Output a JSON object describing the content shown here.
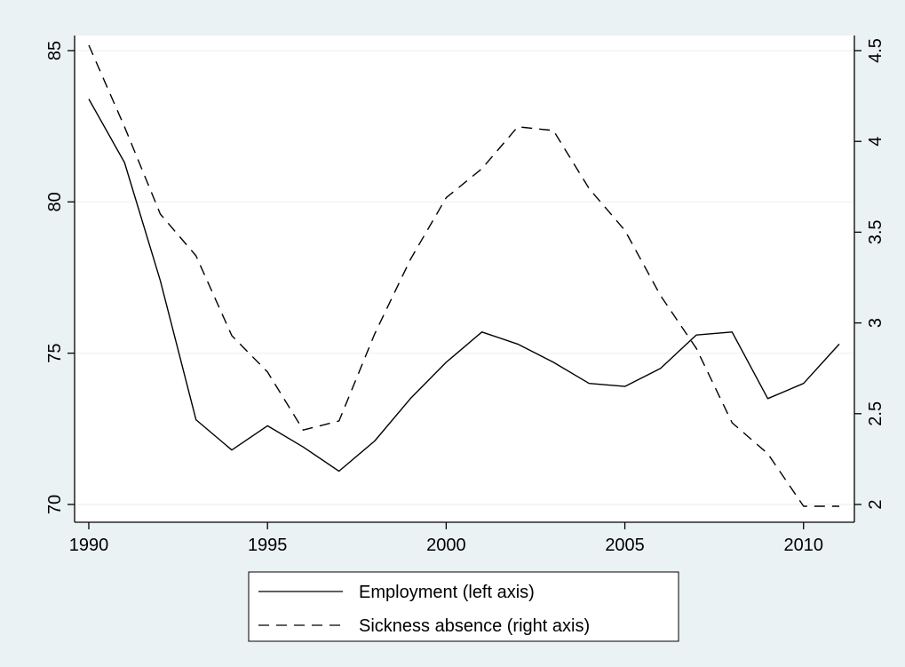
{
  "colors": {
    "outer_background": "#eaf2f3",
    "plot_background": "#ffffff",
    "gridline": "#eaf2f3",
    "line_color": "#000000",
    "legend_background": "#ffffff"
  },
  "chart_data": {
    "type": "line",
    "title": "",
    "xlabel": "",
    "ylabel_left": "",
    "ylabel_right": "",
    "grid": true,
    "legend_placement": "bottom-center",
    "x": [
      1990,
      1991,
      1992,
      1993,
      1994,
      1995,
      1996,
      1997,
      1998,
      1999,
      2000,
      2001,
      2002,
      2003,
      2004,
      2005,
      2006,
      2007,
      2008,
      2009,
      2010,
      2011
    ],
    "x_ticks": [
      "1990",
      "1995",
      "2000",
      "2005",
      "2010"
    ],
    "x_tick_values": [
      1990,
      1995,
      2000,
      2005,
      2010
    ],
    "xlim": [
      1990,
      2011
    ],
    "y_left_ticks": [
      "70",
      "75",
      "80",
      "85"
    ],
    "y_left_tick_values": [
      70,
      75,
      80,
      85
    ],
    "ylim_left": [
      70,
      85
    ],
    "y_right_ticks": [
      "2",
      "2.5",
      "3",
      "3.5",
      "4",
      "4.5"
    ],
    "y_right_tick_values": [
      2,
      2.5,
      3,
      3.5,
      4,
      4.5
    ],
    "ylim_right": [
      2,
      4.5
    ],
    "series": [
      {
        "name": "Employment (left axis)",
        "axis": "left",
        "style": "solid",
        "values": [
          83.4,
          81.3,
          77.4,
          72.8,
          71.8,
          72.6,
          71.9,
          71.1,
          72.1,
          73.5,
          74.7,
          75.7,
          75.3,
          74.7,
          74.0,
          73.9,
          74.5,
          75.6,
          75.7,
          73.5,
          74.0,
          75.3
        ]
      },
      {
        "name": "Sickness absence (right axis)",
        "axis": "right",
        "style": "dashed",
        "values": [
          4.53,
          4.08,
          3.6,
          3.37,
          2.93,
          2.73,
          2.41,
          2.46,
          2.94,
          3.35,
          3.69,
          3.85,
          4.08,
          4.06,
          3.74,
          3.51,
          3.15,
          2.86,
          2.45,
          2.28,
          1.99,
          1.99
        ]
      }
    ]
  }
}
